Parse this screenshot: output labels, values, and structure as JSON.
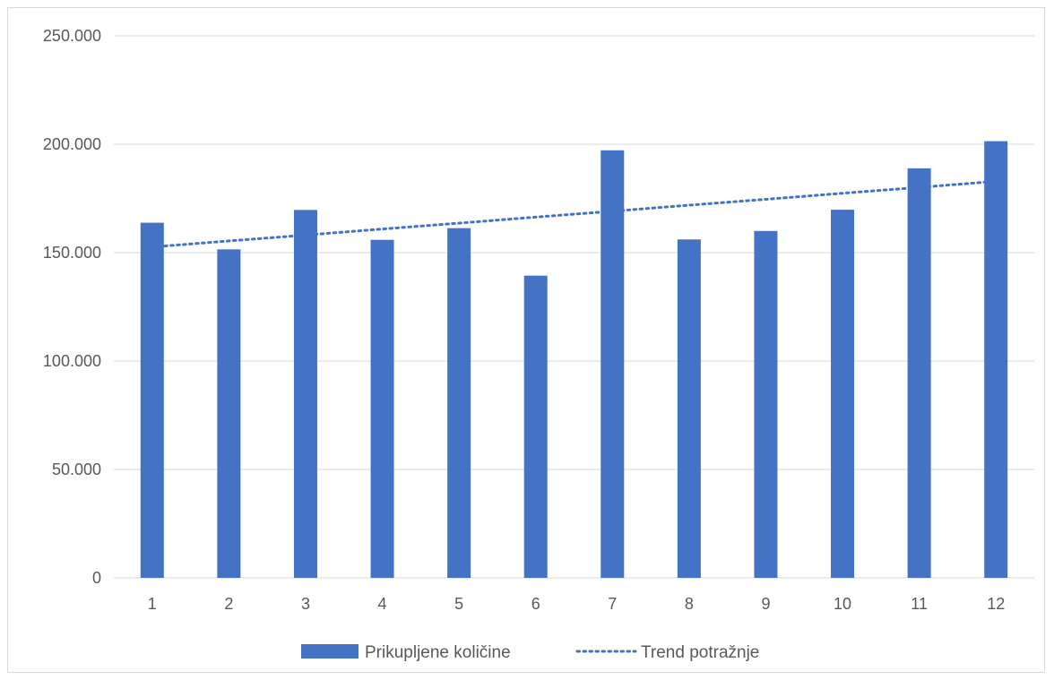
{
  "chart_data": {
    "type": "bar",
    "categories": [
      "1",
      "2",
      "3",
      "4",
      "5",
      "6",
      "7",
      "8",
      "9",
      "10",
      "11",
      "12"
    ],
    "series": [
      {
        "name": "Prikupljene količine",
        "type": "bar",
        "color": "#4472c4",
        "values": [
          163800,
          151500,
          169700,
          155900,
          161300,
          139400,
          197200,
          156100,
          160000,
          169800,
          188900,
          201400
        ]
      },
      {
        "name": "Trend potražnje",
        "type": "trendline",
        "style": "dotted",
        "color": "#4472c4",
        "values": [
          152600,
          155400,
          158100,
          160900,
          163600,
          166400,
          169100,
          171900,
          174600,
          177400,
          180100,
          182900
        ]
      }
    ],
    "y_ticks": [
      "0",
      "50.000",
      "100.000",
      "150.000",
      "200.000",
      "250.000"
    ],
    "ylim": [
      0,
      250000
    ],
    "xlabel": "",
    "ylabel": "",
    "grid": "horizontal",
    "legend_position": "bottom"
  }
}
